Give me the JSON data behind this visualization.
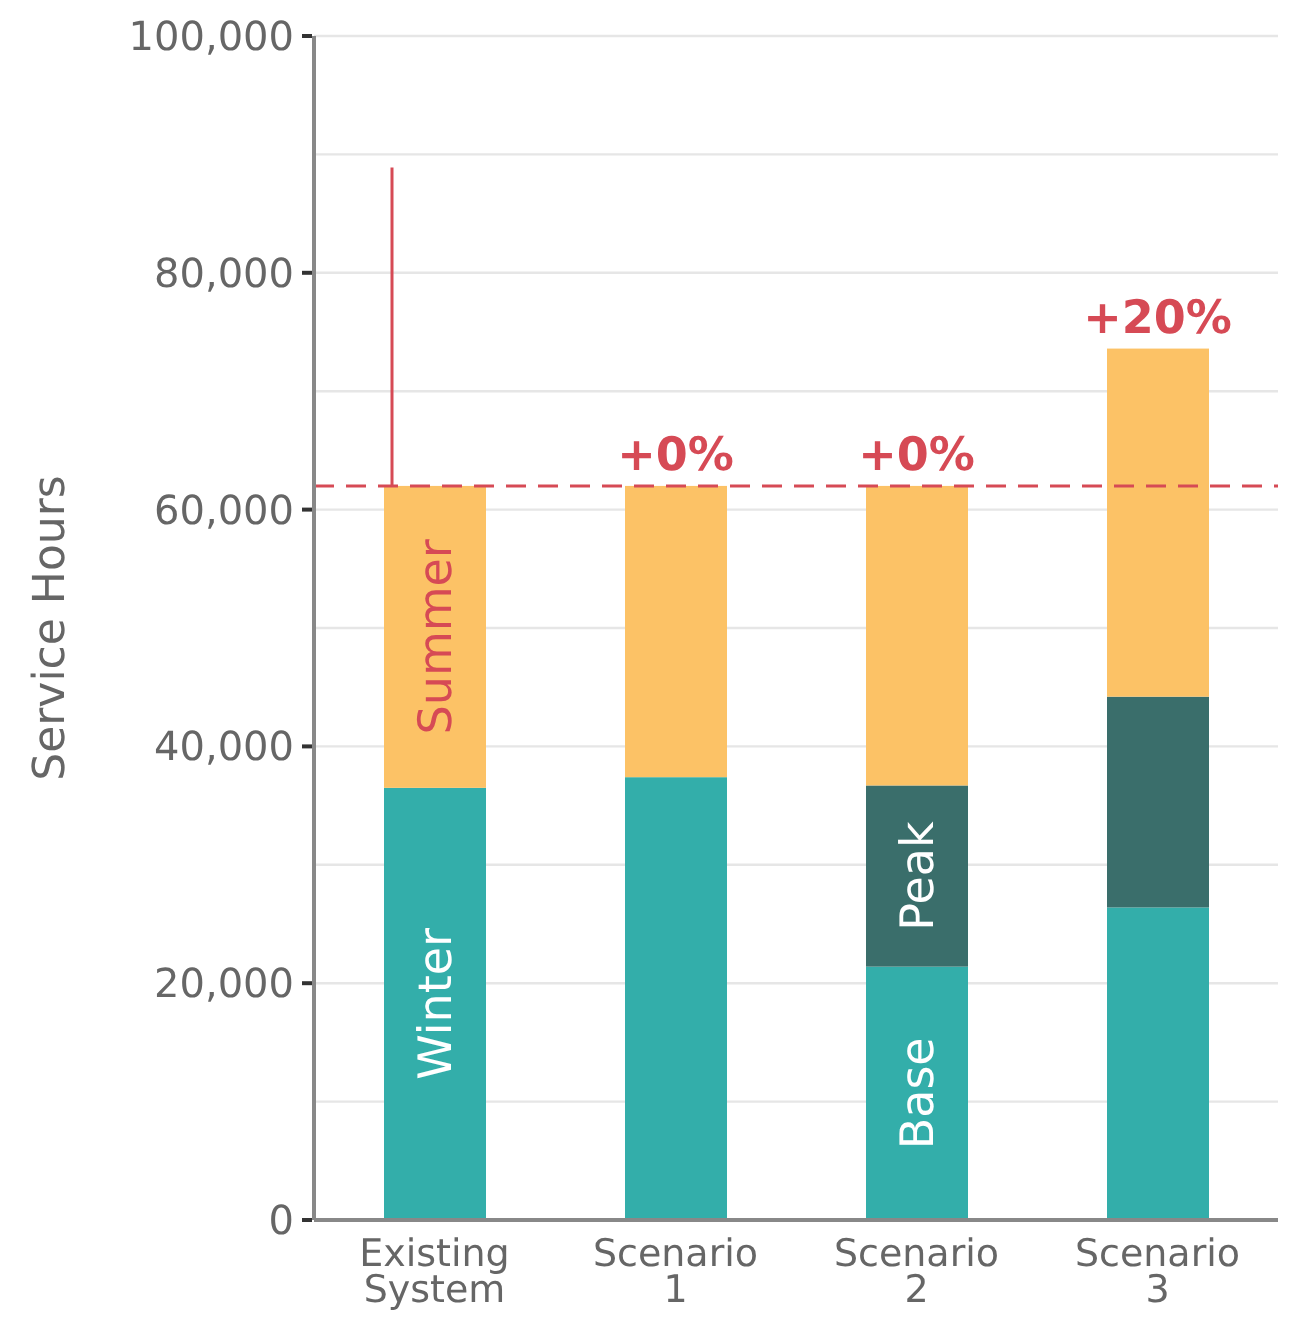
{
  "chart_data": {
    "type": "bar",
    "stacked": true,
    "ylabel": "Service Hours",
    "categories": [
      "Existing System",
      "Scenario 1",
      "Scenario 2",
      "Scenario 3"
    ],
    "series": [
      {
        "name": "Winter",
        "color": "#33aeaa",
        "values": [
          36500,
          37400,
          null,
          null
        ]
      },
      {
        "name": "Base",
        "color": "#33aeaa",
        "values": [
          null,
          null,
          21400,
          26400
        ]
      },
      {
        "name": "Peak",
        "color": "#3a6e6b",
        "values": [
          null,
          null,
          15300,
          17800
        ]
      },
      {
        "name": "Summer",
        "color": "#fcc266",
        "values": [
          25500,
          24600,
          25300,
          29400
        ],
        "errors": [
          [
            62000,
            88900
          ],
          null,
          null,
          null
        ]
      }
    ],
    "ylim": [
      0,
      100000
    ],
    "yticks": [
      0,
      {
        "value": 10000,
        "label": null
      },
      {
        "value": 20000,
        "label": "20,000"
      },
      {
        "value": 30000,
        "label": null
      },
      {
        "value": 40000,
        "label": "40,000"
      },
      {
        "value": 50000,
        "label": null
      },
      {
        "value": 60000,
        "label": "60,000"
      },
      {
        "value": 70000,
        "label": null
      },
      {
        "value": 80000,
        "label": "80,000"
      },
      {
        "value": 90000,
        "label": null
      },
      {
        "value": 100000,
        "label": "100,000"
      }
    ],
    "grid": "y",
    "ref_lines": [
      {
        "axis": "y",
        "value": 62000,
        "color": "#d64a55",
        "line_style": "dashed"
      }
    ],
    "annotations": [
      {
        "text": "+0%",
        "x": "Scenario 1",
        "y": 62000
      },
      {
        "text": "+0%",
        "x": "Scenario 2",
        "y": 62000
      },
      {
        "text": "+20%",
        "x": "Scenario 3",
        "y": 73600
      }
    ]
  }
}
